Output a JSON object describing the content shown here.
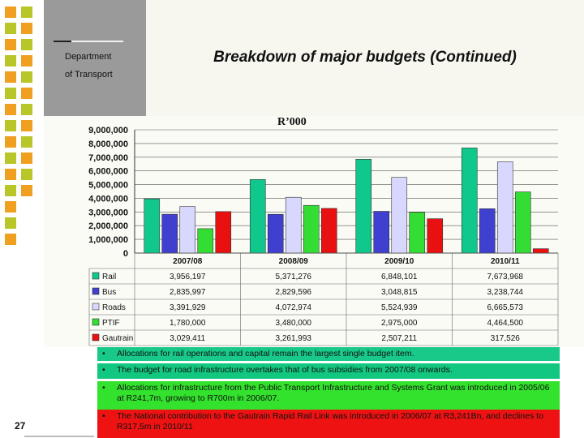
{
  "header": {
    "department_line1": "Department",
    "department_line2": "of Transport",
    "title": "Breakdown of major budgets (Continued)"
  },
  "page_number": "27",
  "colors": {
    "rail": "#10c88c",
    "bus": "#3f3fd0",
    "roads": "#d8d8ff",
    "ptif": "#33dd33",
    "gautrain": "#e81010",
    "sidebar_green": "#b8c62a",
    "sidebar_orange": "#f0a020"
  },
  "bullets": [
    {
      "marker": "•",
      "text": "Allocations for rail operations and capital remain the largest single budget item."
    },
    {
      "marker": "•",
      "text": "The budget for road infrastructure overtakes that of bus subsidies from 2007/08 onwards."
    },
    {
      "marker": "•",
      "text": "Allocations for infrastructure from the Public Transport Infrastructure and Systems Grant was introduced in 2005/06 at R241,7m, growing to R700m in 2006/07."
    },
    {
      "marker": "•",
      "text": "The National contribution to the Gautrain Rapid Rail Link was introduced in 2006/07 at R3,241Bn, and declines to R317,5m in 2010/11"
    }
  ],
  "chart_data": {
    "type": "bar",
    "title": "R’000",
    "categories": [
      "2007/08",
      "2008/09",
      "2009/10",
      "2010/11"
    ],
    "ylim": [
      0,
      9000000
    ],
    "yticks": [
      0,
      1000000,
      2000000,
      3000000,
      4000000,
      5000000,
      6000000,
      7000000,
      8000000,
      9000000
    ],
    "ytick_labels": [
      "0",
      "1,000,000",
      "2,000,000",
      "3,000,000",
      "4,000,000",
      "5,000,000",
      "6,000,000",
      "7,000,000",
      "8,000,000",
      "9,000,000"
    ],
    "grid": true,
    "legend": "table-below",
    "series": [
      {
        "name": "Rail",
        "color": "#10c88c",
        "values": [
          3956197,
          5371276,
          6848101,
          7673968
        ],
        "labels": [
          "3,956,197",
          "5,371,276",
          "6,848,101",
          "7,673,968"
        ]
      },
      {
        "name": "Bus",
        "color": "#3f3fd0",
        "values": [
          2835997,
          2829596,
          3048815,
          3238744
        ],
        "labels": [
          "2,835,997",
          "2,829,596",
          "3,048,815",
          "3,238,744"
        ]
      },
      {
        "name": "Roads",
        "color": "#d8d8ff",
        "values": [
          3391929,
          4072974,
          5524939,
          6665573
        ],
        "labels": [
          "3,391,929",
          "4,072,974",
          "5,524,939",
          "6,665,573"
        ]
      },
      {
        "name": "PTIF",
        "color": "#33dd33",
        "values": [
          1780000,
          3480000,
          2975000,
          4464500
        ],
        "labels": [
          "1,780,000",
          "3,480,000",
          "2,975,000",
          "4,464,500"
        ]
      },
      {
        "name": "Gautrain",
        "color": "#e81010",
        "values": [
          3029411,
          3261993,
          2507211,
          317526
        ],
        "labels": [
          "3,029,411",
          "3,261,993",
          "2,507,211",
          "317,526"
        ]
      }
    ]
  }
}
